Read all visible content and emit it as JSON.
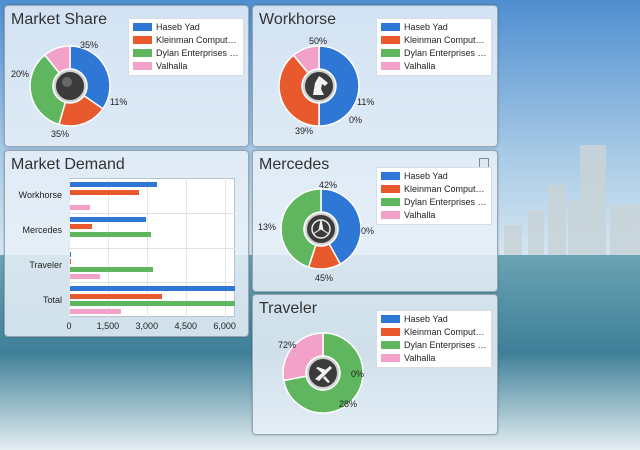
{
  "colors": {
    "haseb": "#2e77d4",
    "kleinman": "#e85a2e",
    "dylan": "#5fb65f",
    "valhalla": "#f2a2c8"
  },
  "legend_entries": [
    "Haseb Yad",
    "Kleinman Comput…",
    "Dylan Enterprises …",
    "Valhalla"
  ],
  "panels": {
    "market_share": {
      "title": "Market Share",
      "labels": [
        "35%",
        "20%",
        "35%",
        "11%"
      ],
      "icon": "dark-orb-icon",
      "chart_data": {
        "type": "pie",
        "categories": [
          "Haseb Yad",
          "Kleinman Computers",
          "Dylan Enterprises",
          "Valhalla"
        ],
        "values": [
          35,
          20,
          35,
          11
        ]
      }
    },
    "workhorse": {
      "title": "Workhorse",
      "labels": [
        "50%",
        "39%",
        "0%",
        "11%"
      ],
      "icon": "horse-head-icon",
      "chart_data": {
        "type": "pie",
        "categories": [
          "Haseb Yad",
          "Kleinman Computers",
          "Dylan Enterprises",
          "Valhalla"
        ],
        "values": [
          50,
          39,
          0,
          11
        ]
      }
    },
    "mercedes": {
      "title": "Mercedes",
      "labels": [
        "42%",
        "13%",
        "45%",
        "0%"
      ],
      "icon": "mercedes-logo-icon",
      "save_icon": "save-icon",
      "chart_data": {
        "type": "pie",
        "categories": [
          "Haseb Yad",
          "Kleinman Computers",
          "Dylan Enterprises",
          "Valhalla"
        ],
        "values": [
          42,
          13,
          45,
          0
        ]
      }
    },
    "traveler": {
      "title": "Traveler",
      "labels": [
        "72%",
        "0%",
        "28%"
      ],
      "icon": "airplane-icon",
      "chart_data": {
        "type": "pie",
        "categories": [
          "Haseb Yad",
          "Kleinman Computers",
          "Dylan Enterprises",
          "Valhalla"
        ],
        "values": [
          0,
          0,
          72,
          28
        ]
      }
    },
    "market_demand": {
      "title": "Market Demand",
      "chart_data": {
        "type": "bar",
        "orientation": "horizontal",
        "categories": [
          "Workhorse",
          "Mercedes",
          "Traveler",
          "Total"
        ],
        "series": [
          {
            "name": "Haseb Yad",
            "values": [
              3400,
              2950,
              30,
              6400
            ]
          },
          {
            "name": "Kleinman Computers",
            "values": [
              2700,
              900,
              20,
              3600
            ]
          },
          {
            "name": "Dylan Enterprises",
            "values": [
              0,
              3150,
              3250,
              6400
            ]
          },
          {
            "name": "Valhalla",
            "values": [
              800,
              0,
              1200,
              2000
            ]
          }
        ],
        "xticks": [
          "0",
          "1,500",
          "3,000",
          "4,500",
          "6,000"
        ],
        "xlim": [
          0,
          6400
        ],
        "grid": true
      }
    }
  }
}
